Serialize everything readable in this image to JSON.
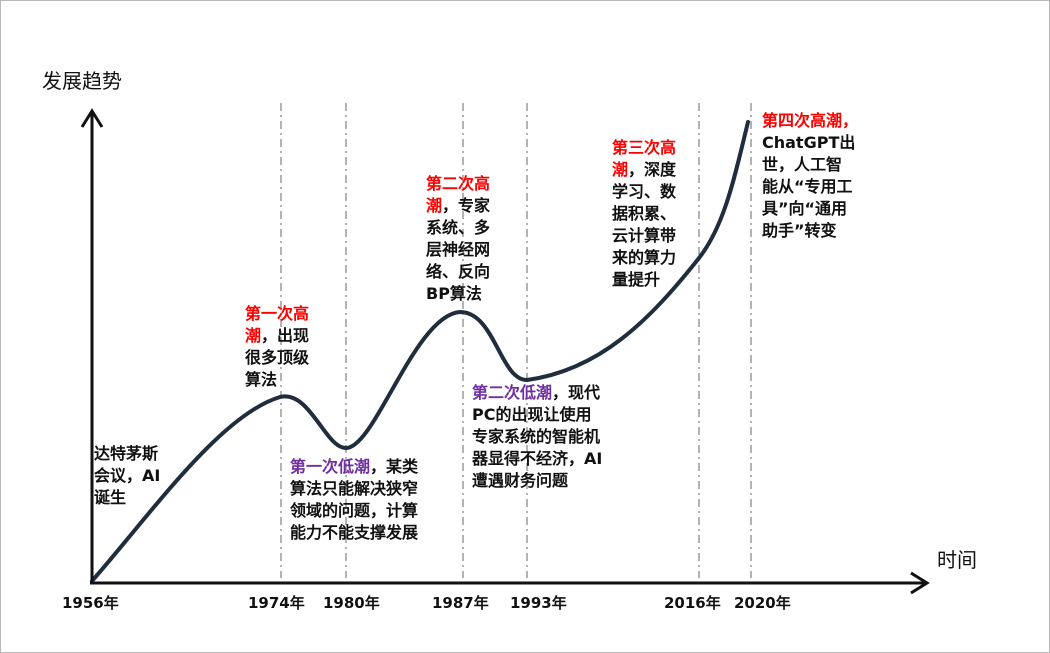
{
  "axes": {
    "y_label": "发展趋势",
    "x_label": "时间"
  },
  "years": [
    "1956年",
    "1974年",
    "1980年",
    "1987年",
    "1993年",
    "2016年",
    "2020年"
  ],
  "annotations": {
    "dartmouth": {
      "lines": [
        [
          {
            "t": "达特茅斯",
            "c": "k"
          }
        ],
        [
          {
            "t": "会议，AI",
            "c": "k"
          }
        ],
        [
          {
            "t": "诞生",
            "c": "k"
          }
        ]
      ]
    },
    "first_peak": {
      "lines": [
        [
          {
            "t": "第一次高",
            "c": "r"
          }
        ],
        [
          {
            "t": "潮",
            "c": "r"
          },
          {
            "t": "，出现",
            "c": "k"
          }
        ],
        [
          {
            "t": "很多顶级",
            "c": "k"
          }
        ],
        [
          {
            "t": "算法",
            "c": "k"
          }
        ]
      ]
    },
    "first_low": {
      "lines": [
        [
          {
            "t": "第一次低潮",
            "c": "p"
          },
          {
            "t": "，某类",
            "c": "k"
          }
        ],
        [
          {
            "t": "算法只能解决狭窄",
            "c": "k"
          }
        ],
        [
          {
            "t": "领域的问题，计算",
            "c": "k"
          }
        ],
        [
          {
            "t": "能力不能支撑发展",
            "c": "k"
          }
        ]
      ]
    },
    "second_peak": {
      "lines": [
        [
          {
            "t": "第二次高",
            "c": "r"
          }
        ],
        [
          {
            "t": "潮",
            "c": "r"
          },
          {
            "t": "，专家",
            "c": "k"
          }
        ],
        [
          {
            "t": "系统、多",
            "c": "k"
          }
        ],
        [
          {
            "t": "层神经网",
            "c": "k"
          }
        ],
        [
          {
            "t": "络、反向",
            "c": "k"
          }
        ],
        [
          {
            "t": "BP算法",
            "c": "k"
          }
        ]
      ]
    },
    "second_low": {
      "lines": [
        [
          {
            "t": "第二次低潮",
            "c": "p"
          },
          {
            "t": "，现代",
            "c": "k"
          }
        ],
        [
          {
            "t": "PC的出现让使用",
            "c": "k"
          }
        ],
        [
          {
            "t": "专家系统的智能机",
            "c": "k"
          }
        ],
        [
          {
            "t": "器显得不经济，AI",
            "c": "k"
          }
        ],
        [
          {
            "t": "遭遇财务问题",
            "c": "k"
          }
        ]
      ]
    },
    "third_peak": {
      "lines": [
        [
          {
            "t": "第三次高",
            "c": "r"
          }
        ],
        [
          {
            "t": "潮",
            "c": "r"
          },
          {
            "t": "，深度",
            "c": "k"
          }
        ],
        [
          {
            "t": "学习、数",
            "c": "k"
          }
        ],
        [
          {
            "t": "据积累、",
            "c": "k"
          }
        ],
        [
          {
            "t": "云计算带",
            "c": "k"
          }
        ],
        [
          {
            "t": "来的算力",
            "c": "k"
          }
        ],
        [
          {
            "t": "量提升",
            "c": "k"
          }
        ]
      ]
    },
    "fourth_peak": {
      "lines": [
        [
          {
            "t": "第四次高潮，",
            "c": "r"
          }
        ],
        [
          {
            "t": "ChatGPT出",
            "c": "k"
          }
        ],
        [
          {
            "t": "世，人工智",
            "c": "k"
          }
        ],
        [
          {
            "t": "能从“专用工",
            "c": "k"
          }
        ],
        [
          {
            "t": "具”向“通用",
            "c": "k"
          }
        ],
        [
          {
            "t": "助手”转变",
            "c": "k"
          }
        ]
      ]
    }
  },
  "colors": {
    "axis": "#111111",
    "curve": "#1f2d3d",
    "dashed_line": "#8a8a8a",
    "highlight_peak": "#ff0000",
    "highlight_low": "#7030a0",
    "text": "#111111"
  }
}
